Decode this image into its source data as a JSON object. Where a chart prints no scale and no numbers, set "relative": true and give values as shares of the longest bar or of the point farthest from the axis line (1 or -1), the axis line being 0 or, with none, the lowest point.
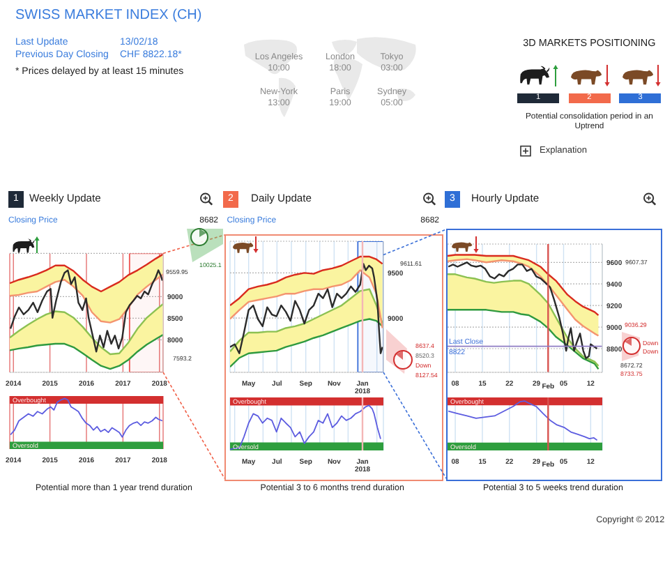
{
  "chart_data": [
    {
      "type": "other",
      "title": "SWISS MARKET INDEX (CH)",
      "annotations": [
        "Last Update",
        "13/02/18",
        "Previous Day Closing",
        "CHF 8822.18*",
        "* Prices delayed by at least 15 minutes"
      ]
    },
    {
      "type": "other",
      "annotations": [
        "Los Angeles",
        "10:00",
        "London",
        "18:00",
        "Tokyo",
        "03:00",
        "New-York",
        "13:00",
        "Paris",
        "19:00",
        "Sydney",
        "05:00"
      ]
    },
    {
      "type": "other",
      "title": "3D MARKETS POSITIONING",
      "annotations": [
        "1",
        "2",
        "3",
        "Potential consolidation period in an Uptrend",
        "Explanation"
      ]
    },
    {
      "type": "line",
      "title": "Weekly Update",
      "subtitle": "Closing Price",
      "annotations": [
        "1",
        "8682",
        "10025.1",
        "9559.95",
        "7593.2"
      ],
      "x": [
        2013.9,
        2014.15,
        2014.4,
        2014.65,
        2014.9,
        2015.15,
        2015.4,
        2015.65,
        2015.9,
        2016.15,
        2016.4,
        2016.65,
        2016.9,
        2017.15,
        2017.4,
        2017.65,
        2017.9,
        2018.1
      ],
      "xlim": [
        2013.9,
        2018.1
      ],
      "xticks": [
        2014,
        2015,
        2016,
        2017,
        2018
      ],
      "ylim": [
        7250,
        10000
      ],
      "yticks": [
        8000,
        8500,
        9000
      ],
      "grid": true,
      "bands": [
        {
          "axis": "x",
          "from": 2017.18,
          "to": 2018.1,
          "color": "#ef5350"
        }
      ],
      "series": [
        {
          "color": "#2f9a3f",
          "values": [
            7760,
            7800,
            7830,
            7870,
            7890,
            7910,
            7910,
            7830,
            7690,
            7540,
            7400,
            7330,
            7400,
            7540,
            7730,
            7890,
            8020,
            8120
          ],
          "lower": [
            7760,
            7800,
            7830,
            7870,
            7890,
            7910,
            7910,
            7830,
            7690,
            7540,
            7400,
            7330,
            7400,
            7540,
            7730,
            7890,
            8020,
            8120
          ],
          "upper": [
            8050,
            8210,
            8350,
            8480,
            8590,
            8660,
            8640,
            8510,
            8300,
            8050,
            7830,
            7670,
            7690,
            7940,
            8260,
            8510,
            8690,
            8830
          ]
        },
        {
          "color": "#8cc152",
          "values": [
            8050,
            8210,
            8350,
            8480,
            8590,
            8660,
            8640,
            8510,
            8300,
            8050,
            7830,
            7670,
            7690,
            7940,
            8260,
            8510,
            8690,
            8830
          ]
        },
        {
          "color": "#d92b1e",
          "values": [
            9310,
            9390,
            9450,
            9520,
            9610,
            9720,
            9720,
            9590,
            9390,
            9230,
            9120,
            9230,
            9340,
            9500,
            9610,
            9740,
            9880,
            9980
          ],
          "lower": [
            9020,
            9040,
            9090,
            9120,
            9230,
            9340,
            9390,
            9230,
            9020,
            8640,
            8430,
            8400,
            8480,
            8750,
            9050,
            9230,
            9390,
            9520
          ],
          "upper": [
            9310,
            9390,
            9450,
            9520,
            9610,
            9720,
            9720,
            9590,
            9390,
            9230,
            9120,
            9230,
            9340,
            9500,
            9610,
            9740,
            9880,
            9980
          ]
        },
        {
          "color": "#f4946f",
          "values": [
            9020,
            9040,
            9090,
            9120,
            9230,
            9340,
            9390,
            9230,
            9020,
            8640,
            8430,
            8400,
            8480,
            8750,
            9050,
            9230,
            9390,
            9520
          ]
        },
        {
          "color": "#2b2b2b",
          "x": [
            2013.92,
            2014.03,
            2014.15,
            2014.28,
            2014.41,
            2014.54,
            2014.66,
            2014.79,
            2014.92,
            2015.02,
            2015.07,
            2015.17,
            2015.3,
            2015.4,
            2015.49,
            2015.58,
            2015.68,
            2015.78,
            2015.89,
            2015.99,
            2016.06,
            2016.17,
            2016.27,
            2016.37,
            2016.47,
            2016.57,
            2016.68,
            2016.78,
            2016.88,
            2016.98,
            2017.08,
            2017.18,
            2017.29,
            2017.39,
            2017.49,
            2017.59,
            2017.69,
            2017.8,
            2017.9,
            2017.97,
            2018.04,
            2018.08
          ],
          "values": [
            8260,
            8530,
            8750,
            8590,
            8690,
            8860,
            8640,
            8910,
            9120,
            9180,
            8510,
            8910,
            9340,
            9550,
            9610,
            9290,
            9450,
            8860,
            8690,
            8960,
            8510,
            8100,
            7730,
            8100,
            7830,
            8210,
            7910,
            8100,
            7800,
            8050,
            8640,
            8800,
            8910,
            9020,
            8960,
            9120,
            9050,
            9290,
            9450,
            9610,
            9480,
            9370
          ]
        }
      ]
    },
    {
      "type": "line",
      "relative": true,
      "color": "#5c5ce0",
      "x": [
        2013.92,
        2014.03,
        2014.15,
        2014.28,
        2014.41,
        2014.54,
        2014.66,
        2014.79,
        2014.92,
        2015.02,
        2015.11,
        2015.2,
        2015.3,
        2015.4,
        2015.49,
        2015.58,
        2015.68,
        2015.78,
        2015.89,
        2015.99,
        2016.09,
        2016.19,
        2016.29,
        2016.39,
        2016.5,
        2016.6,
        2016.7,
        2016.8,
        2016.9,
        2016.98,
        2017.08,
        2017.18,
        2017.29,
        2017.39,
        2017.49,
        2017.59,
        2017.69,
        2017.8,
        2017.9,
        2017.97,
        2018.08
      ],
      "values": [
        0.06,
        0.18,
        0.42,
        0.51,
        0.6,
        0.54,
        0.66,
        0.6,
        0.72,
        0.78,
        0.7,
        0.9,
        0.96,
        1,
        0.96,
        0.78,
        0.72,
        0.66,
        0.48,
        0.36,
        0.3,
        0.18,
        0.27,
        0.14,
        0.2,
        0.12,
        0.24,
        0.18,
        0.12,
        0,
        0.18,
        0.3,
        0.36,
        0.39,
        0.3,
        0.39,
        0.36,
        0.42,
        0.51,
        0.46,
        0.42
      ],
      "xlim": [
        2013.9,
        2018.1
      ],
      "xticks": [
        2014,
        2015,
        2016,
        2017,
        2018
      ],
      "grid": "x",
      "bands": [
        {
          "axis": "y",
          "from": 0.86,
          "to": 1.06,
          "label": "Overbought",
          "color": "#d32f2f"
        },
        {
          "axis": "y",
          "from": -0.31,
          "to": -0.12,
          "label": "Oversold",
          "color": "#2e9e3e"
        }
      ],
      "annotations": [
        "Potential more than 1 year trend duration"
      ]
    },
    {
      "type": "line",
      "title": "Daily Update",
      "subtitle": "Closing Price",
      "annotations": [
        "2",
        "8682",
        "9611.61",
        "8637.4",
        "8520.3",
        "Down",
        "8127.54"
      ],
      "x": [
        "2017-03-22",
        "2017-04-11",
        "2017-05-01",
        "2017-05-21",
        "2017-06-10",
        "2017-06-30",
        "2017-07-20",
        "2017-08-09",
        "2017-08-29",
        "2017-09-18",
        "2017-10-08",
        "2017-10-28",
        "2017-11-17",
        "2017-12-07",
        "2017-12-27",
        "2018-01-16",
        "2018-01-31",
        "2018-02-13"
      ],
      "xlim": [
        "2017-03-22",
        "2018-02-15"
      ],
      "xticks": [
        {
          "value": "2017-04-01",
          "label": null
        },
        {
          "value": "2017-05-01",
          "label": "May"
        },
        {
          "value": "2017-06-01",
          "label": null
        },
        {
          "value": "2017-07-01",
          "label": "Jul"
        },
        {
          "value": "2017-08-01",
          "label": null
        },
        {
          "value": "2017-09-01",
          "label": "Sep"
        },
        {
          "value": "2017-10-01",
          "label": null
        },
        {
          "value": "2017-11-01",
          "label": "Nov"
        },
        {
          "value": "2017-12-01",
          "label": null
        },
        {
          "value": "2018-01-01",
          "label": "Jan\n2018"
        },
        {
          "value": "2018-02-01",
          "label": null
        }
      ],
      "ylim": [
        8400,
        9850
      ],
      "yticks": [
        9000,
        9500
      ],
      "grid": true,
      "bands": [
        {
          "axis": "x",
          "from": "2017-12-22",
          "to": "2018-02-15",
          "color": "#3a6fd8"
        }
      ],
      "ref_lines": [
        {
          "axis": "x",
          "value": "2018-01-01",
          "color": "#f4b6b6"
        }
      ],
      "series": [
        {
          "color": "#2f9a3f",
          "values": [
            8460,
            8560,
            8610,
            8620,
            8630,
            8640,
            8680,
            8710,
            8740,
            8780,
            8810,
            8850,
            8890,
            8930,
            8970,
            8990,
            8970,
            8910
          ],
          "lower": [
            8460,
            8560,
            8610,
            8620,
            8630,
            8640,
            8680,
            8710,
            8740,
            8780,
            8810,
            8850,
            8890,
            8930,
            8970,
            8990,
            8970,
            8910
          ],
          "upper": [
            8630,
            8750,
            8840,
            8840,
            8850,
            8850,
            8890,
            8910,
            8940,
            8990,
            9040,
            9090,
            9140,
            9220,
            9300,
            9320,
            9140,
            8940
          ]
        },
        {
          "color": "#8cc152",
          "values": [
            8630,
            8750,
            8840,
            8840,
            8850,
            8850,
            8890,
            8910,
            8940,
            8990,
            9040,
            9090,
            9140,
            9220,
            9300,
            9320,
            9140,
            8940
          ]
        },
        {
          "color": "#d92b1e",
          "values": [
            9140,
            9220,
            9320,
            9350,
            9370,
            9400,
            9450,
            9480,
            9500,
            9490,
            9530,
            9550,
            9580,
            9630,
            9680,
            9680,
            9650,
            9600
          ],
          "lower": [
            8990,
            9090,
            9180,
            9200,
            9220,
            9240,
            9270,
            9270,
            9300,
            9320,
            9320,
            9350,
            9370,
            9420,
            9530,
            9450,
            9270,
            8890
          ],
          "upper": [
            9140,
            9220,
            9320,
            9350,
            9370,
            9400,
            9450,
            9480,
            9500,
            9490,
            9530,
            9550,
            9580,
            9630,
            9680,
            9680,
            9650,
            9600
          ]
        },
        {
          "color": "#f4946f",
          "values": [
            8990,
            9090,
            9180,
            9200,
            9220,
            9240,
            9270,
            9270,
            9300,
            9320,
            9320,
            9350,
            9370,
            9420,
            9530,
            9450,
            9270,
            8890
          ]
        },
        {
          "color": "#2b2b2b",
          "x": [
            "2017-03-22",
            "2017-04-01",
            "2017-04-11",
            "2017-04-21",
            "2017-05-01",
            "2017-05-11",
            "2017-05-21",
            "2017-05-31",
            "2017-06-10",
            "2017-06-20",
            "2017-06-30",
            "2017-07-10",
            "2017-07-20",
            "2017-07-30",
            "2017-08-09",
            "2017-08-19",
            "2017-08-29",
            "2017-09-08",
            "2017-09-18",
            "2017-09-28",
            "2017-10-08",
            "2017-10-18",
            "2017-10-28",
            "2017-11-07",
            "2017-11-17",
            "2017-11-27",
            "2017-12-07",
            "2017-12-17",
            "2017-12-27",
            "2018-01-03",
            "2018-01-08",
            "2018-01-15",
            "2018-01-22",
            "2018-01-26",
            "2018-02-02",
            "2018-02-06",
            "2018-02-09",
            "2018-02-13"
          ],
          "values": [
            8680,
            8710,
            8610,
            8840,
            9090,
            9140,
            8990,
            8910,
            9120,
            9040,
            9020,
            9140,
            9070,
            8970,
            9190,
            9090,
            8940,
            9090,
            9140,
            9270,
            9220,
            9320,
            9120,
            9270,
            9220,
            9270,
            9350,
            9290,
            9370,
            9600,
            9530,
            9580,
            9550,
            9450,
            9190,
            8840,
            8610,
            8680
          ]
        }
      ]
    },
    {
      "type": "line",
      "relative": true,
      "color": "#5c5ce0",
      "x": [
        "2017-03-22",
        "2017-04-01",
        "2017-04-11",
        "2017-04-21",
        "2017-05-01",
        "2017-05-11",
        "2017-05-21",
        "2017-05-31",
        "2017-06-10",
        "2017-06-20",
        "2017-06-30",
        "2017-07-10",
        "2017-07-20",
        "2017-07-30",
        "2017-08-09",
        "2017-08-19",
        "2017-08-29",
        "2017-09-08",
        "2017-09-18",
        "2017-09-28",
        "2017-10-08",
        "2017-10-18",
        "2017-10-28",
        "2017-11-07",
        "2017-11-17",
        "2017-11-27",
        "2017-12-07",
        "2017-12-17",
        "2017-12-27",
        "2018-01-08",
        "2018-01-15",
        "2018-01-22",
        "2018-01-26",
        "2018-02-02",
        "2018-02-09"
      ],
      "values": [
        0,
        0.03,
        0.03,
        0.29,
        0.6,
        0.81,
        0.76,
        0.6,
        0.71,
        0.66,
        0.4,
        0.71,
        0.6,
        0.5,
        0.29,
        0.4,
        0.14,
        0.29,
        0.4,
        0.66,
        0.6,
        0.81,
        0.5,
        0.6,
        0.76,
        0.66,
        0.71,
        0.81,
        0.86,
        0.97,
        1,
        0.92,
        0.81,
        0.5,
        0.24
      ],
      "xlim": [
        "2017-03-22",
        "2018-02-15"
      ],
      "xticks": [
        {
          "value": "2017-04-01",
          "label": null
        },
        {
          "value": "2017-05-01",
          "label": "May"
        },
        {
          "value": "2017-06-01",
          "label": null
        },
        {
          "value": "2017-07-01",
          "label": "Jul"
        },
        {
          "value": "2017-08-01",
          "label": null
        },
        {
          "value": "2017-09-01",
          "label": "Sep"
        },
        {
          "value": "2017-10-01",
          "label": null
        },
        {
          "value": "2017-11-01",
          "label": "Nov"
        },
        {
          "value": "2017-12-01",
          "label": null
        },
        {
          "value": "2018-01-01",
          "label": "Jan\n2018"
        },
        {
          "value": "2018-02-01",
          "label": null
        }
      ],
      "grid": "x",
      "ref_lines": [
        {
          "axis": "x",
          "value": "2018-01-01",
          "color": "#f4b6b6"
        }
      ],
      "bands": [
        {
          "axis": "y",
          "from": 1.0,
          "to": 1.18,
          "label": "Overbought",
          "color": "#d32f2f"
        },
        {
          "axis": "y",
          "from": -0.02,
          "to": 0.16,
          "label": "Oversold",
          "color": "#2e9e3e"
        }
      ],
      "annotations": [
        "Potential 3 to 6 months trend duration"
      ]
    },
    {
      "type": "line",
      "title": "Hourly Update",
      "annotations": [
        "3",
        "9607.37",
        "9036.29",
        "Down",
        "Down",
        "8672.72",
        "8733.75"
      ],
      "x": [
        "2018-01-06",
        "2018-01-08",
        "2018-01-11",
        "2018-01-13",
        "2018-01-16",
        "2018-01-18",
        "2018-01-20",
        "2018-01-23",
        "2018-01-25",
        "2018-01-27",
        "2018-01-30",
        "2018-02-01",
        "2018-02-03",
        "2018-02-06",
        "2018-02-08",
        "2018-02-10",
        "2018-02-13",
        "2018-02-14"
      ],
      "xlim": [
        "2018-01-06",
        "2018-02-15"
      ],
      "xticks": [
        {
          "value": "2018-01-08",
          "label": "08"
        },
        {
          "value": "2018-01-15",
          "label": "15"
        },
        {
          "value": "2018-01-22",
          "label": "22"
        },
        {
          "value": "2018-01-29",
          "label": "29"
        },
        {
          "value": "2018-02-01",
          "label": "\nFeb"
        },
        {
          "value": "2018-02-05",
          "label": "05"
        },
        {
          "value": "2018-02-12",
          "label": "12"
        }
      ],
      "ylim": [
        8580,
        9770
      ],
      "yticks": [
        8800,
        9000,
        9200,
        9400,
        9600
      ],
      "grid": true,
      "ref_lines": [
        {
          "axis": "x",
          "value": "2018-02-01",
          "color": "#d9534f"
        },
        {
          "axis": "y",
          "value": 8822,
          "label": "Last Close\n8822",
          "color": "#8e7cc3"
        }
      ],
      "series": [
        {
          "color": "#2f9a3f",
          "values": [
            9160,
            9160,
            9160,
            9160,
            9160,
            9150,
            9140,
            9140,
            9120,
            9110,
            9050,
            8990,
            8910,
            8830,
            8770,
            8710,
            8660,
            8610
          ],
          "lower": [
            9160,
            9160,
            9160,
            9160,
            9160,
            9150,
            9140,
            9140,
            9120,
            9110,
            9050,
            8990,
            8910,
            8830,
            8770,
            8710,
            8660,
            8610
          ],
          "upper": [
            9490,
            9490,
            9460,
            9450,
            9420,
            9410,
            9420,
            9430,
            9430,
            9400,
            9300,
            9220,
            9090,
            8900,
            8800,
            8730,
            8680,
            8640
          ]
        },
        {
          "color": "#8cc152",
          "values": [
            9490,
            9490,
            9460,
            9450,
            9420,
            9410,
            9420,
            9430,
            9430,
            9400,
            9300,
            9220,
            9090,
            8900,
            8800,
            8730,
            8680,
            8640
          ]
        },
        {
          "color": "#d92b1e",
          "values": [
            9660,
            9670,
            9670,
            9670,
            9660,
            9660,
            9660,
            9660,
            9640,
            9620,
            9560,
            9490,
            9430,
            9300,
            9240,
            9190,
            9140,
            9110
          ],
          "lower": [
            9610,
            9620,
            9630,
            9620,
            9600,
            9610,
            9620,
            9610,
            9590,
            9560,
            9470,
            9390,
            9300,
            9160,
            9070,
            9010,
            8940,
            8920
          ],
          "upper": [
            9660,
            9670,
            9670,
            9670,
            9660,
            9660,
            9660,
            9660,
            9640,
            9620,
            9560,
            9490,
            9430,
            9300,
            9240,
            9190,
            9140,
            9110
          ]
        },
        {
          "color": "#f4946f",
          "values": [
            9610,
            9620,
            9630,
            9620,
            9600,
            9610,
            9620,
            9610,
            9590,
            9560,
            9470,
            9390,
            9300,
            9160,
            9070,
            9010,
            8940,
            8920
          ]
        },
        {
          "color": "#2b2b2b",
          "x": [
            "2018-01-06T05:00",
            "2018-01-07T10:00",
            "2018-01-08T14:00",
            "2018-01-09T19:00",
            "2018-01-11T00:00",
            "2018-01-12T04:00",
            "2018-01-13T09:00",
            "2018-01-14T14:00",
            "2018-01-15T18:00",
            "2018-01-16T23:00",
            "2018-01-18T04:00",
            "2018-01-19T08:00",
            "2018-01-20T13:00",
            "2018-01-21T18:00",
            "2018-01-22T22:00",
            "2018-01-24T03:00",
            "2018-01-25T08:00",
            "2018-01-26T12:00",
            "2018-01-27T17:00",
            "2018-01-28T22:00",
            "2018-01-30T02:00",
            "2018-01-31T07:00",
            "2018-02-01T12:00",
            "2018-02-02T16:00",
            "2018-02-03T21:00",
            "2018-02-04T20:00",
            "2018-02-05T16:00",
            "2018-02-06T06:00",
            "2018-02-06T21:00",
            "2018-02-07T17:00",
            "2018-02-08T10:00",
            "2018-02-09T06:00",
            "2018-02-10T02:00",
            "2018-02-10T19:00",
            "2018-02-11T13:00",
            "2018-02-12T00:00",
            "2018-02-12T20:00",
            "2018-02-13T16:00"
          ],
          "values": [
            9560,
            9580,
            9560,
            9580,
            9600,
            9570,
            9560,
            9570,
            9540,
            9470,
            9450,
            9490,
            9470,
            9520,
            9540,
            9580,
            9580,
            9520,
            9540,
            9470,
            9450,
            9410,
            9370,
            9240,
            9090,
            8940,
            8780,
            8900,
            8990,
            8780,
            8860,
            8940,
            8780,
            8710,
            8730,
            8840,
            8820,
            8800
          ]
        }
      ]
    },
    {
      "type": "line",
      "relative": true,
      "color": "#5c5ce0",
      "x": [
        "2018-01-06T05:00",
        "2018-01-08T14:00",
        "2018-01-11T00:00",
        "2018-01-13T09:00",
        "2018-01-15T18:00",
        "2018-01-18T04:00",
        "2018-01-20T13:00",
        "2018-01-22T22:00",
        "2018-01-24T17:00",
        "2018-01-25T22:00",
        "2018-01-27T03:00",
        "2018-01-28T22:00",
        "2018-01-30T17:00",
        "2018-02-01T12:00",
        "2018-02-03T07:00",
        "2018-02-05T02:00",
        "2018-02-06T21:00",
        "2018-02-08T16:00",
        "2018-02-10T11:00",
        "2018-02-11T16:00",
        "2018-02-12T20:00",
        "2018-02-13T16:00"
      ],
      "values": [
        0.74,
        0.68,
        0.62,
        0.56,
        0.59,
        0.62,
        0.74,
        0.86,
        0.98,
        1,
        0.94,
        0.86,
        0.68,
        0.51,
        0.39,
        0.33,
        0.21,
        0.15,
        0.09,
        0.04,
        0.06,
        0
      ],
      "xlim": [
        "2018-01-06",
        "2018-02-15"
      ],
      "xticks": [
        {
          "value": "2018-01-08",
          "label": "08"
        },
        {
          "value": "2018-01-15",
          "label": "15"
        },
        {
          "value": "2018-01-22",
          "label": "22"
        },
        {
          "value": "2018-01-29",
          "label": "29"
        },
        {
          "value": "2018-02-01",
          "label": "\nFeb"
        },
        {
          "value": "2018-02-05",
          "label": "05"
        },
        {
          "value": "2018-02-12",
          "label": "12"
        }
      ],
      "grid": "x",
      "ref_lines": [
        {
          "axis": "x",
          "value": "2018-02-01",
          "color": "#d9534f"
        }
      ],
      "bands": [
        {
          "axis": "y",
          "from": 0.89,
          "to": 1.09,
          "label": "Overbought",
          "color": "#d32f2f"
        },
        {
          "axis": "y",
          "from": -0.26,
          "to": -0.06,
          "label": "Oversold",
          "color": "#2e9e3e"
        }
      ],
      "annotations": [
        "Potential 3 to 5 weeks trend duration"
      ]
    },
    {
      "type": "other",
      "annotations": [
        "Copyright © 2012"
      ]
    }
  ]
}
